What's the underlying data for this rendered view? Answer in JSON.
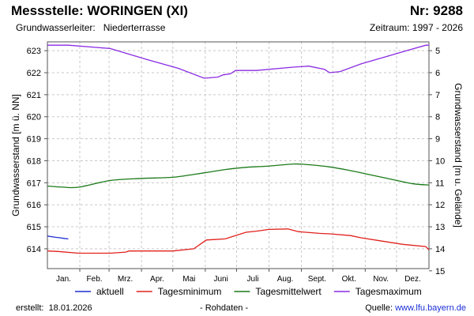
{
  "header": {
    "title": "Messstelle: WORINGEN (XI)",
    "number": "Nr: 9288",
    "aquifer": "Grundwasserleiter:   Niederterrasse",
    "period": "Zeitraum: 1997 - 2026"
  },
  "footer": {
    "created": "erstellt:  18.01.2026",
    "raw": "- Rohdaten -",
    "source_label": "Quelle: ",
    "source_link": "www.lfu.bayern.de"
  },
  "chart_data": {
    "type": "line",
    "ylabel": "Grundwasserstand [m ü. NN]",
    "y2label": "Grundwasserstand [m u. Gelände]",
    "ylim": [
      613.1,
      623.4
    ],
    "yticks": [
      614,
      615,
      616,
      617,
      618,
      619,
      620,
      621,
      622,
      623
    ],
    "y2ticks": [
      5,
      6,
      7,
      8,
      9,
      10,
      11,
      12,
      13,
      14,
      15
    ],
    "y2_reference": 628,
    "xlim": [
      0,
      365
    ],
    "month_labels": [
      "Jan.",
      "Feb.",
      "Mrz.",
      "Apr.",
      "Mai",
      "Juni",
      "Juli",
      "Aug.",
      "Sept.",
      "Okt.",
      "Nov.",
      "Dez."
    ],
    "grid": true,
    "legend_position": "bottom",
    "colors": {
      "aktuell": "#1f2fd0",
      "minimum": "#e0201c",
      "mittel": "#1a7a1a",
      "maximum": "#8a2be2"
    },
    "series": [
      {
        "name": "aktuell",
        "color_key": "aktuell",
        "x": [
          0,
          4,
          8,
          12,
          16,
          20
        ],
        "values": [
          614.58,
          614.55,
          614.52,
          614.5,
          614.47,
          614.45
        ]
      },
      {
        "name": "Tagesminimum",
        "color_key": "minimum",
        "x": [
          0,
          10,
          30,
          60,
          75,
          78,
          90,
          120,
          140,
          152,
          160,
          170,
          190,
          200,
          212,
          230,
          240,
          260,
          270,
          290,
          300,
          320,
          340,
          362,
          365
        ],
        "values": [
          613.9,
          613.88,
          613.8,
          613.8,
          613.85,
          613.9,
          613.9,
          613.9,
          614.0,
          614.4,
          614.42,
          614.45,
          614.75,
          614.8,
          614.88,
          614.9,
          614.78,
          614.7,
          614.68,
          614.6,
          614.5,
          614.35,
          614.2,
          614.1,
          613.95
        ]
      },
      {
        "name": "Tagesmittelwert",
        "color_key": "mittel",
        "x": [
          0,
          15,
          30,
          60,
          90,
          120,
          150,
          170,
          190,
          210,
          235,
          250,
          270,
          290,
          310,
          330,
          350,
          365
        ],
        "values": [
          616.85,
          616.8,
          616.8,
          617.1,
          617.2,
          617.25,
          617.45,
          617.6,
          617.7,
          617.75,
          617.85,
          617.82,
          617.72,
          617.55,
          617.35,
          617.15,
          616.95,
          616.9
        ],
        "smooth": true
      },
      {
        "name": "Tagesmaximum",
        "color_key": "maximum",
        "x": [
          0,
          20,
          60,
          95,
          125,
          150,
          163,
          168,
          175,
          180,
          200,
          235,
          250,
          265,
          270,
          280,
          300,
          340,
          362,
          365
        ],
        "values": [
          623.25,
          623.25,
          623.1,
          622.6,
          622.2,
          621.75,
          621.8,
          621.9,
          621.95,
          622.1,
          622.1,
          622.25,
          622.3,
          622.15,
          622.0,
          622.05,
          622.4,
          622.95,
          623.25,
          623.25
        ]
      }
    ]
  }
}
